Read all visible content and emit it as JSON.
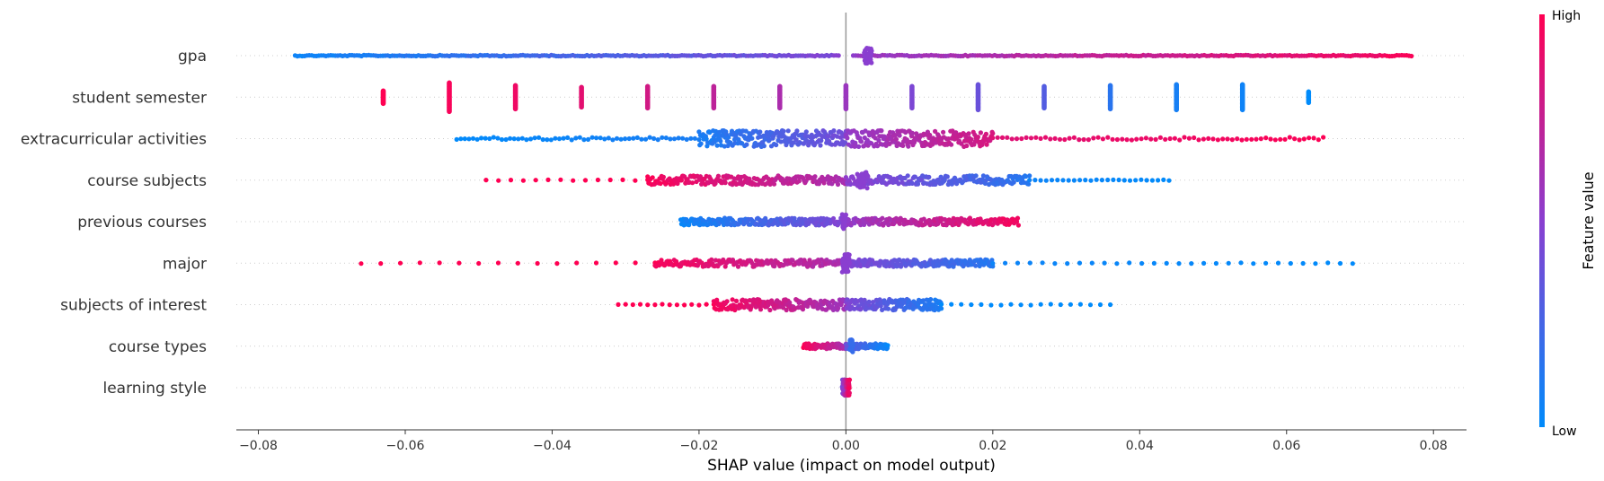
{
  "chart_data": {
    "type": "scatter",
    "title": "",
    "xlabel": "SHAP value (impact on model output)",
    "ylabel": "",
    "xlim": [
      -0.083,
      0.0845
    ],
    "xticks": [
      "−0.08",
      "−0.06",
      "−0.04",
      "−0.02",
      "0.00",
      "0.02",
      "0.04",
      "0.06",
      "0.08"
    ],
    "xtick_values": [
      -0.08,
      -0.06,
      -0.04,
      -0.02,
      0.0,
      0.02,
      0.04,
      0.06,
      0.08
    ],
    "grid": false,
    "colors": {
      "low": "#008bfb",
      "mid": "#8a3fd0",
      "high": "#ff0052",
      "zero_line": "#999999"
    },
    "colorbar": {
      "title": "Feature value",
      "high_label": "High",
      "low_label": "Low"
    },
    "features": [
      {
        "name": "gpa",
        "segments": [
          {
            "from": -0.075,
            "to": -0.001,
            "count": 230,
            "spread": 0.6,
            "color_from": 0,
            "color_to": 0.5
          },
          {
            "from": 0.001,
            "to": 0.077,
            "count": 230,
            "spread": 0.6,
            "color_from": 0.5,
            "color_to": 1
          },
          {
            "from": 0.0025,
            "to": 0.0035,
            "count": 40,
            "spread": 9,
            "color_from": 0.5,
            "color_to": 0.5
          }
        ]
      },
      {
        "name": "student semester",
        "clusters": [
          {
            "x": -0.063,
            "count": 14,
            "spread": 7,
            "color": 1.0
          },
          {
            "x": -0.054,
            "count": 26,
            "spread": 16,
            "color": 0.97
          },
          {
            "x": -0.045,
            "count": 20,
            "spread": 13,
            "color": 0.93
          },
          {
            "x": -0.036,
            "count": 16,
            "spread": 11,
            "color": 0.88
          },
          {
            "x": -0.027,
            "count": 18,
            "spread": 12,
            "color": 0.8
          },
          {
            "x": -0.018,
            "count": 18,
            "spread": 12,
            "color": 0.72
          },
          {
            "x": -0.009,
            "count": 18,
            "spread": 12,
            "color": 0.64
          },
          {
            "x": 0.0,
            "count": 20,
            "spread": 13,
            "color": 0.57
          },
          {
            "x": 0.009,
            "count": 18,
            "spread": 12,
            "color": 0.45
          },
          {
            "x": 0.018,
            "count": 22,
            "spread": 14,
            "color": 0.38
          },
          {
            "x": 0.027,
            "count": 18,
            "spread": 12,
            "color": 0.3
          },
          {
            "x": 0.036,
            "count": 20,
            "spread": 13,
            "color": 0.15
          },
          {
            "x": 0.045,
            "count": 22,
            "spread": 14,
            "color": 0.08
          },
          {
            "x": 0.054,
            "count": 22,
            "spread": 14,
            "color": 0.05
          },
          {
            "x": 0.063,
            "count": 10,
            "spread": 6,
            "color": 0.0
          }
        ]
      },
      {
        "name": "extracurricular activities",
        "segments": [
          {
            "from": -0.053,
            "to": -0.02,
            "count": 60,
            "spread": 1.5,
            "color_from": 0,
            "color_to": 0.1
          },
          {
            "from": -0.02,
            "to": 0.0,
            "count": 220,
            "spread": 9,
            "color_from": 0.05,
            "color_to": 0.45
          },
          {
            "from": 0.0,
            "to": 0.02,
            "count": 220,
            "spread": 9,
            "color_from": 0.5,
            "color_to": 0.85
          },
          {
            "from": 0.02,
            "to": 0.065,
            "count": 70,
            "spread": 1.5,
            "color_from": 0.85,
            "color_to": 1
          }
        ]
      },
      {
        "name": "course subjects",
        "segments": [
          {
            "from": -0.049,
            "to": -0.027,
            "count": 14,
            "spread": 0.5,
            "color_from": 1,
            "color_to": 1
          },
          {
            "from": -0.027,
            "to": 0.0,
            "count": 200,
            "spread": 5,
            "color_from": 1,
            "color_to": 0.6
          },
          {
            "from": 0.0,
            "to": 0.025,
            "count": 200,
            "spread": 5,
            "color_from": 0.55,
            "color_to": 0.1
          },
          {
            "from": 0.025,
            "to": 0.044,
            "count": 26,
            "spread": 0.5,
            "color_from": 0.05,
            "color_to": 0
          },
          {
            "from": 0.0015,
            "to": 0.003,
            "count": 30,
            "spread": 9,
            "color_from": 0.5,
            "color_to": 0.5
          }
        ]
      },
      {
        "name": "previous courses",
        "segments": [
          {
            "from": -0.0225,
            "to": 0.0,
            "count": 200,
            "spread": 4,
            "color_from": 0,
            "color_to": 0.5
          },
          {
            "from": 0.0,
            "to": 0.0235,
            "count": 200,
            "spread": 4,
            "color_from": 0.5,
            "color_to": 1
          },
          {
            "from": -0.0005,
            "to": 0.0,
            "count": 20,
            "spread": 8,
            "color_from": 0.5,
            "color_to": 0.5
          }
        ]
      },
      {
        "name": "major",
        "segments": [
          {
            "from": -0.066,
            "to": -0.026,
            "count": 16,
            "spread": 0.5,
            "color_from": 1,
            "color_to": 1
          },
          {
            "from": -0.026,
            "to": 0.0,
            "count": 180,
            "spread": 4,
            "color_from": 1,
            "color_to": 0.6
          },
          {
            "from": 0.0,
            "to": 0.02,
            "count": 180,
            "spread": 4,
            "color_from": 0.5,
            "color_to": 0.1
          },
          {
            "from": 0.02,
            "to": 0.069,
            "count": 30,
            "spread": 0.5,
            "color_from": 0.05,
            "color_to": 0
          },
          {
            "from": -0.0005,
            "to": 0.0005,
            "count": 40,
            "spread": 10,
            "color_from": 0.5,
            "color_to": 0.5
          }
        ]
      },
      {
        "name": "subjects of interest",
        "segments": [
          {
            "from": -0.031,
            "to": -0.018,
            "count": 14,
            "spread": 0.5,
            "color_from": 1,
            "color_to": 1
          },
          {
            "from": -0.018,
            "to": 0.0,
            "count": 170,
            "spread": 6,
            "color_from": 1,
            "color_to": 0.55
          },
          {
            "from": 0.0,
            "to": 0.013,
            "count": 170,
            "spread": 6,
            "color_from": 0.5,
            "color_to": 0.05
          },
          {
            "from": 0.013,
            "to": 0.036,
            "count": 18,
            "spread": 0.5,
            "color_from": 0,
            "color_to": 0
          }
        ]
      },
      {
        "name": "course types",
        "segments": [
          {
            "from": -0.0058,
            "to": 0.0,
            "count": 80,
            "spread": 3,
            "color_from": 1,
            "color_to": 0.6
          },
          {
            "from": 0.0,
            "to": 0.0057,
            "count": 80,
            "spread": 3,
            "color_from": 0.4,
            "color_to": 0
          },
          {
            "from": 0.0005,
            "to": 0.001,
            "count": 20,
            "spread": 8,
            "color_from": 0.2,
            "color_to": 0.2
          }
        ]
      },
      {
        "name": "learning style",
        "segments": [
          {
            "from": -0.0005,
            "to": 0.0005,
            "count": 70,
            "spread": 9,
            "color_from": 0.4,
            "color_to": 1
          }
        ]
      }
    ]
  }
}
